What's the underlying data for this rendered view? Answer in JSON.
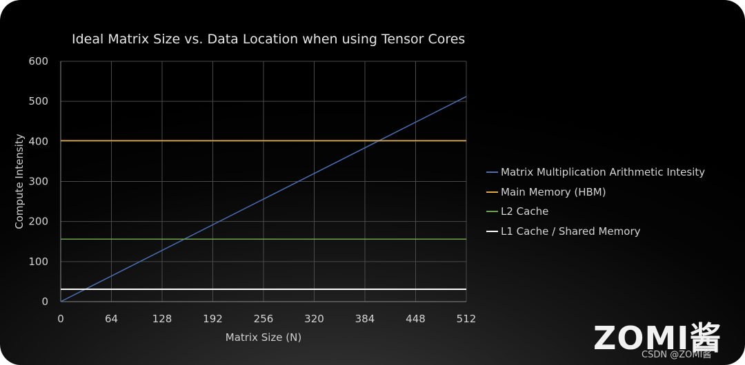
{
  "chart_data": {
    "type": "line",
    "title": "Ideal Matrix Size vs. Data Location when using Tensor Cores",
    "xlabel": "Matrix Size (N)",
    "ylabel": "Compute Intensity",
    "xlim": [
      0,
      512
    ],
    "ylim": [
      0,
      600
    ],
    "x_ticks": [
      0,
      64,
      128,
      192,
      256,
      320,
      384,
      448,
      512
    ],
    "y_ticks": [
      0,
      100,
      200,
      300,
      400,
      500,
      600
    ],
    "grid": true,
    "legend_position": "right",
    "series": [
      {
        "name": "Matrix Multiplication Arithmetic Intesity",
        "color": "#4a6fb3",
        "x": [
          0,
          512
        ],
        "y": [
          0,
          512
        ]
      },
      {
        "name": "Main Memory (HBM)",
        "color": "#e6a93c",
        "x": [
          0,
          512
        ],
        "y": [
          402,
          402
        ]
      },
      {
        "name": "L2 Cache",
        "color": "#6fa34f",
        "x": [
          0,
          512
        ],
        "y": [
          156,
          156
        ]
      },
      {
        "name": "L1 Cache / Shared Memory",
        "color": "#ffffff",
        "x": [
          0,
          512
        ],
        "y": [
          31,
          31
        ]
      }
    ]
  },
  "logo_text": "ZOMI酱",
  "watermark": "CSDN @ZOMI酱"
}
